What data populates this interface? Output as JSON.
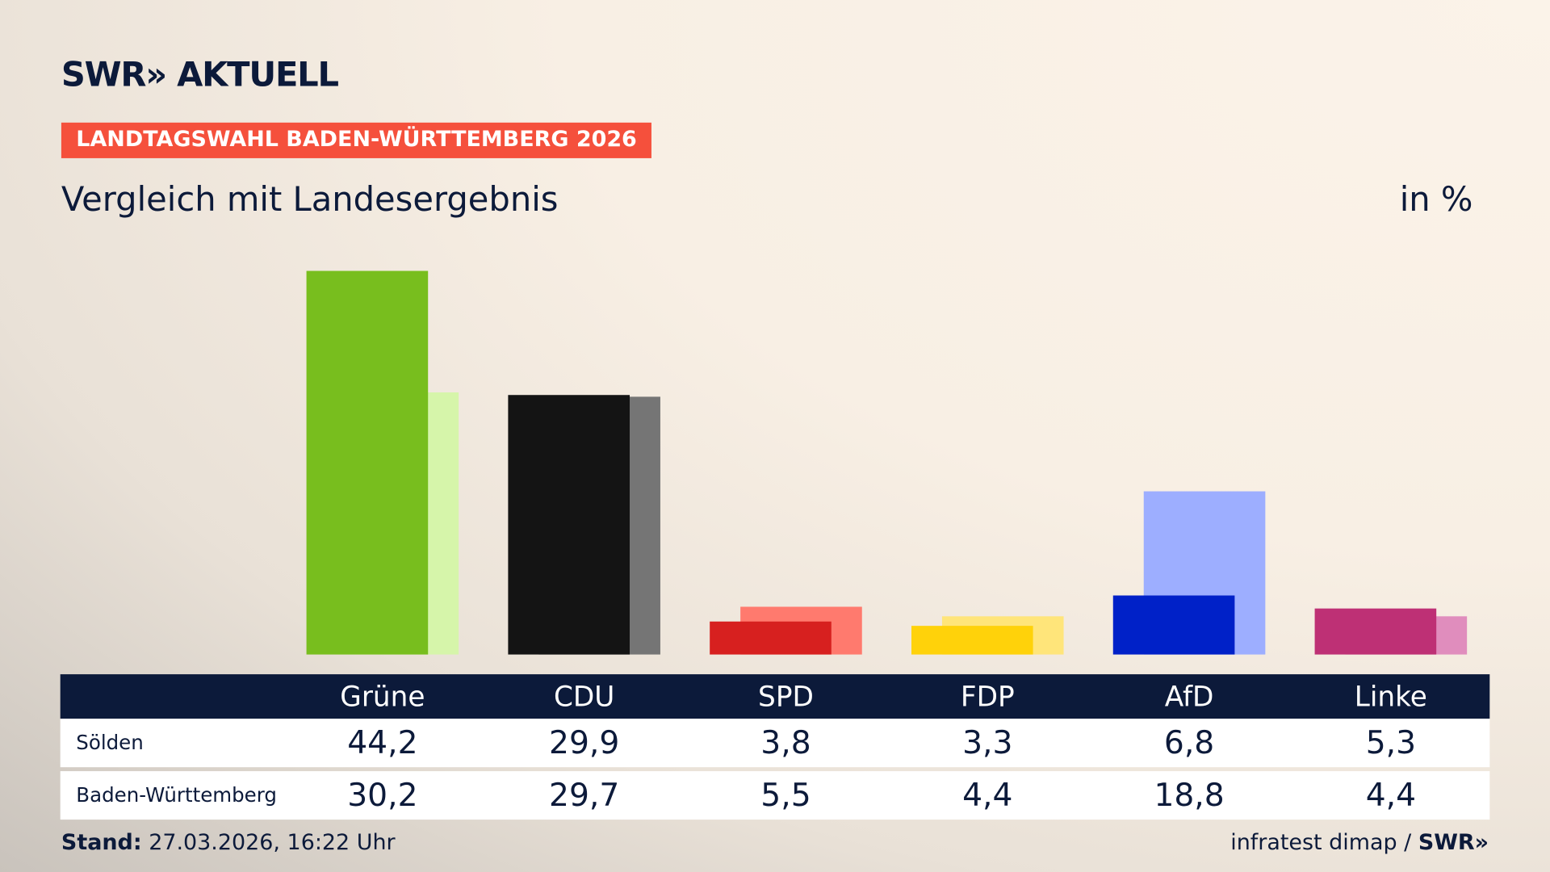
{
  "brand": {
    "logo_text": "SWR» AKTUELL"
  },
  "kicker": "LANDTAGSWAHL BADEN-WÜRTTEMBERG 2026",
  "subtitle": "Vergleich mit Landesergebnis",
  "unit": "in %",
  "chart_data": {
    "type": "bar",
    "categories": [
      "Grüne",
      "CDU",
      "SPD",
      "FDP",
      "AfD",
      "Linke"
    ],
    "series": [
      {
        "name": "Sölden",
        "values": [
          44.2,
          29.9,
          3.8,
          3.3,
          6.8,
          5.3
        ],
        "colors": [
          "#78be1e",
          "#141414",
          "#d7201f",
          "#ffd20a",
          "#0021c8",
          "#be3075"
        ]
      },
      {
        "name": "Baden-Württemberg",
        "values": [
          30.2,
          29.7,
          5.5,
          4.4,
          18.8,
          4.4
        ],
        "colors": [
          "#d6f5aa",
          "#757575",
          "#ff7a6e",
          "#ffe57a",
          "#9daeff",
          "#e08dbd"
        ]
      }
    ],
    "value_labels": [
      [
        "44,2",
        "29,9",
        "3,8",
        "3,3",
        "6,8",
        "5,3"
      ],
      [
        "30,2",
        "29,7",
        "5,5",
        "4,4",
        "18,8",
        "4,4"
      ]
    ],
    "ylim": [
      0,
      45
    ]
  },
  "footer": {
    "label": "Stand:",
    "value": "27.03.2026, 16:22 Uhr"
  },
  "source": {
    "text": "infratest dimap /",
    "brand": "SWR»"
  }
}
